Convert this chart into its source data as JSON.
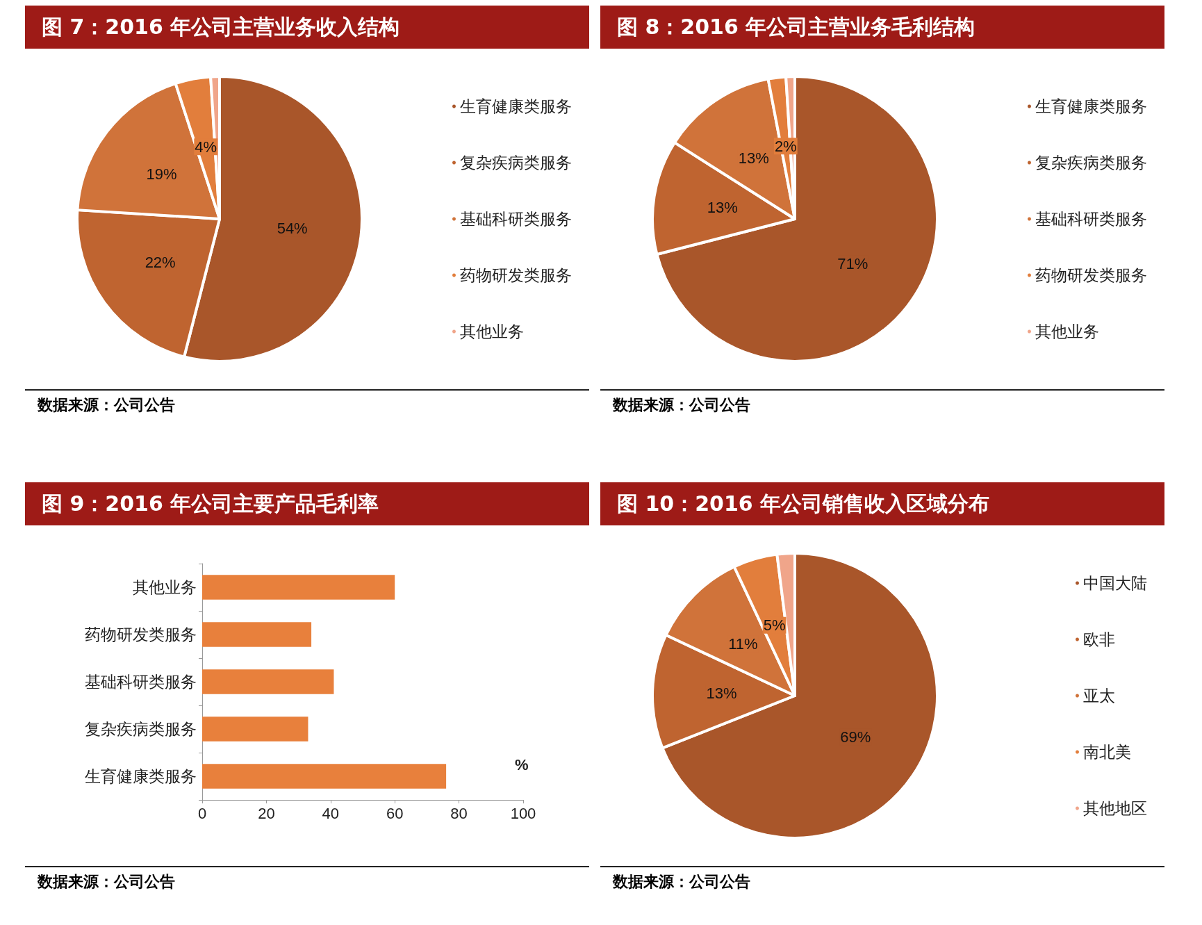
{
  "chart_data": [
    {
      "type": "pie",
      "title": "图 7：2016 年公司主营业务收入结构",
      "categories": [
        "生育健康类服务",
        "复杂疾病类服务",
        "基础科研类服务",
        "药物研发类服务",
        "其他业务"
      ],
      "values": [
        54,
        22,
        19,
        4,
        1
      ],
      "value_labels": [
        "54%",
        "22%",
        "19%",
        "4%",
        null
      ],
      "colors": [
        "#a9562a",
        "#bf6430",
        "#d0733a",
        "#e27e3c",
        "#f0a58a"
      ],
      "legend": "right",
      "annotations": [
        "数据来源：公司公告"
      ]
    },
    {
      "type": "pie",
      "title": "图 8：2016 年公司主营业务毛利结构",
      "categories": [
        "生育健康类服务",
        "复杂疾病类服务",
        "基础科研类服务",
        "药物研发类服务",
        "其他业务"
      ],
      "values": [
        71,
        13,
        13,
        2,
        1
      ],
      "value_labels": [
        "71%",
        "13%",
        "13%",
        "2%",
        null
      ],
      "colors": [
        "#a9562a",
        "#bf6430",
        "#d0733a",
        "#e27e3c",
        "#f0a58a"
      ],
      "legend": "right",
      "annotations": [
        "数据来源：公司公告"
      ]
    },
    {
      "type": "bar",
      "orientation": "horizontal",
      "title": "图 9：2016 年公司主要产品毛利率",
      "categories": [
        "其他业务",
        "药物研发类服务",
        "基础科研类服务",
        "复杂疾病类服务",
        "生育健康类服务"
      ],
      "values": [
        60,
        34,
        41,
        33,
        76
      ],
      "color": "#e8803c",
      "xlabel": "%",
      "xlim": [
        0,
        100
      ],
      "xticks": [
        0,
        20,
        40,
        60,
        80,
        100
      ],
      "grid": false,
      "legend": false,
      "annotations": [
        "数据来源：公司公告"
      ]
    },
    {
      "type": "pie",
      "title": "图 10：2016 年公司销售收入区域分布",
      "categories": [
        "中国大陆",
        "欧非",
        "亚太",
        "南北美",
        "其他地区"
      ],
      "values": [
        69,
        13,
        11,
        5,
        2
      ],
      "value_labels": [
        "69%",
        "13%",
        "11%",
        "5%",
        null
      ],
      "colors": [
        "#a9562a",
        "#bf6430",
        "#d0733a",
        "#e27e3c",
        "#f0a58a"
      ],
      "legend": "right",
      "annotations": [
        "数据来源：公司公告"
      ]
    }
  ]
}
